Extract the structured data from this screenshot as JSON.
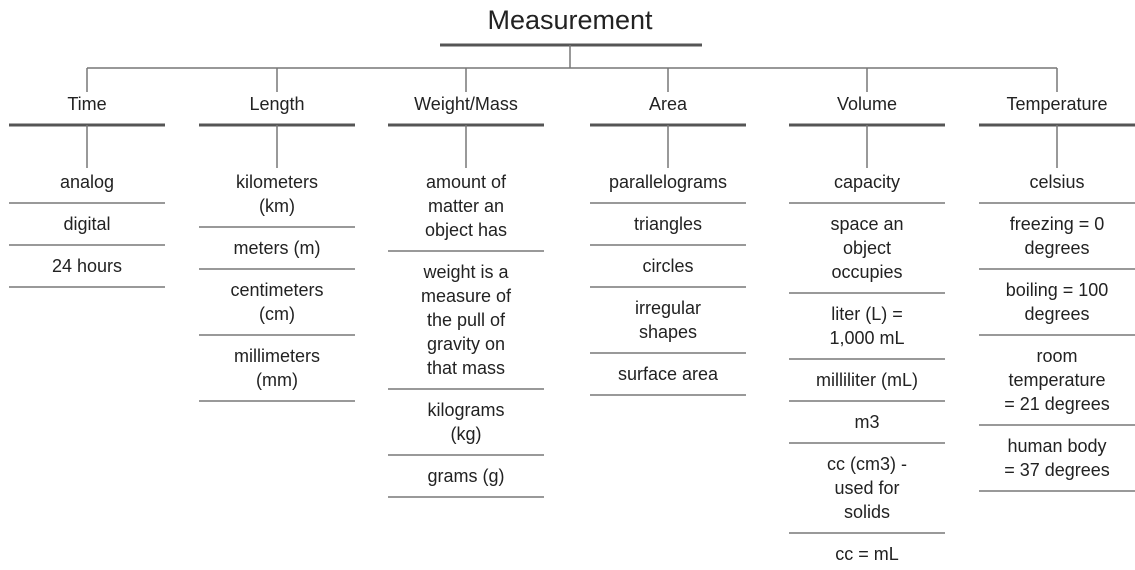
{
  "title": "Measurement",
  "categories": [
    {
      "name": "Time",
      "items": [
        [
          "analog"
        ],
        [
          "digital"
        ],
        [
          "24 hours"
        ]
      ]
    },
    {
      "name": "Length",
      "items": [
        [
          "kilometers",
          "(km)"
        ],
        [
          "meters (m)"
        ],
        [
          "centimeters",
          "(cm)"
        ],
        [
          "millimeters",
          "(mm)"
        ]
      ]
    },
    {
      "name": "Weight/Mass",
      "items": [
        [
          "amount of",
          "matter an",
          "object has"
        ],
        [
          "weight is a",
          "measure of",
          "the pull of",
          "gravity on",
          "that mass"
        ],
        [
          "kilograms",
          "(kg)"
        ],
        [
          "grams (g)"
        ]
      ]
    },
    {
      "name": "Area",
      "items": [
        [
          "parallelograms"
        ],
        [
          "triangles"
        ],
        [
          "circles"
        ],
        [
          "irregular",
          "shapes"
        ],
        [
          "surface area"
        ]
      ]
    },
    {
      "name": "Volume",
      "items": [
        [
          "capacity"
        ],
        [
          "space an",
          "object",
          "occupies"
        ],
        [
          "liter (L) =",
          "1,000 mL"
        ],
        [
          "milliliter (mL)"
        ],
        [
          "m3"
        ],
        [
          "cc (cm3) -",
          "used for",
          "solids"
        ],
        [
          "cc = mL"
        ]
      ]
    },
    {
      "name": "Temperature",
      "items": [
        [
          "celsius"
        ],
        [
          "freezing = 0",
          "degrees"
        ],
        [
          "boiling = 100",
          "degrees"
        ],
        [
          "room",
          "temperature",
          "= 21 degrees"
        ],
        [
          "human body",
          "= 37 degrees"
        ]
      ]
    }
  ]
}
